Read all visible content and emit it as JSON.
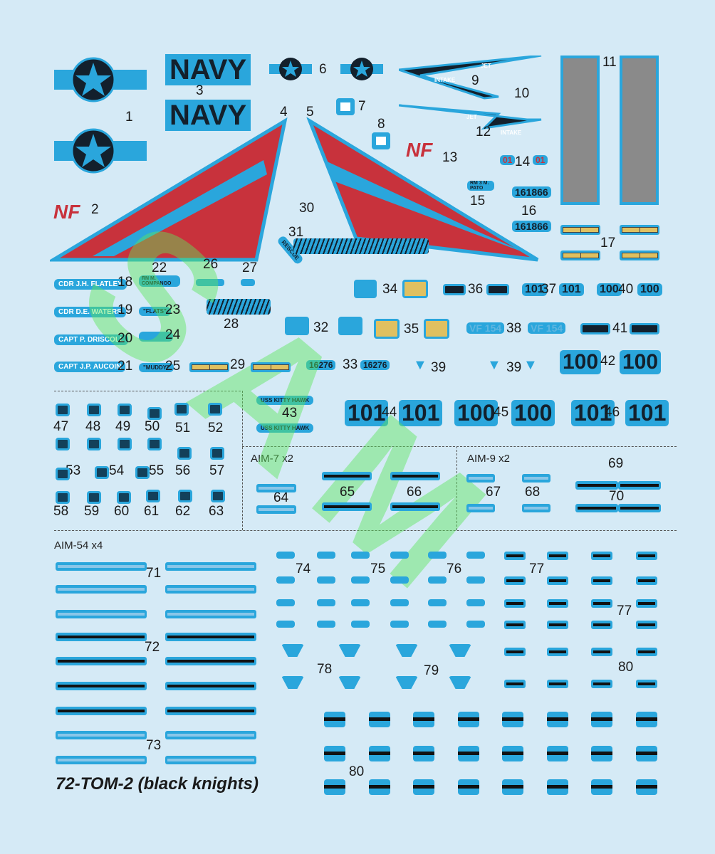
{
  "colors": {
    "background": "#d5eaf6",
    "decal_blue": "#2aa6dc",
    "red": "#c8323c",
    "yellow": "#e0c060",
    "gray": "#8a8a8a",
    "watermark_green": "#5ae65a"
  },
  "text_decals": {
    "navy": "NAVY",
    "nf": "NF",
    "jet": "JET",
    "intake": "INTAKE",
    "names": [
      "CDR J.H. FLATLEY",
      "CDR D.E. WATERS",
      "CAPT P. DRISCOLL",
      "CAPT J.P. AUCOIN"
    ],
    "rio": "RN M. COMPANGO",
    "flats": "\"FLATS\"",
    "muddy": "\"MUDDY\"",
    "rescue": "RESCUE",
    "plane_captain": "RM 3 M. PATO",
    "serial": "161866",
    "serial2": "16276",
    "modex_101": "101",
    "modex_100": "100",
    "squadron": "VF 154",
    "ship": "USS KITTY HAWK",
    "small_01": "01"
  },
  "sections": {
    "aim7": "AIM-7 x2",
    "aim9": "AIM-9 x2",
    "aim54": "AIM-54 x4",
    "aim54_label": "AIM-54"
  },
  "numbers": [
    "1",
    "2",
    "3",
    "4",
    "5",
    "6",
    "7",
    "8",
    "9",
    "10",
    "11",
    "12",
    "13",
    "14",
    "15",
    "16",
    "17",
    "18",
    "19",
    "20",
    "21",
    "22",
    "23",
    "24",
    "25",
    "26",
    "27",
    "28",
    "29",
    "30",
    "31",
    "32",
    "33",
    "34",
    "35",
    "36",
    "37",
    "38",
    "39",
    "39",
    "40",
    "41",
    "42",
    "43",
    "44",
    "45",
    "46",
    "47",
    "48",
    "49",
    "50",
    "51",
    "52",
    "53",
    "54",
    "55",
    "56",
    "57",
    "58",
    "59",
    "60",
    "61",
    "62",
    "63",
    "64",
    "65",
    "66",
    "67",
    "68",
    "69",
    "70",
    "71",
    "72",
    "73",
    "74",
    "75",
    "76",
    "77",
    "77",
    "78",
    "79",
    "80",
    "80"
  ],
  "title": "72-TOM-2 (black knights)",
  "watermark": "SAMPLE"
}
